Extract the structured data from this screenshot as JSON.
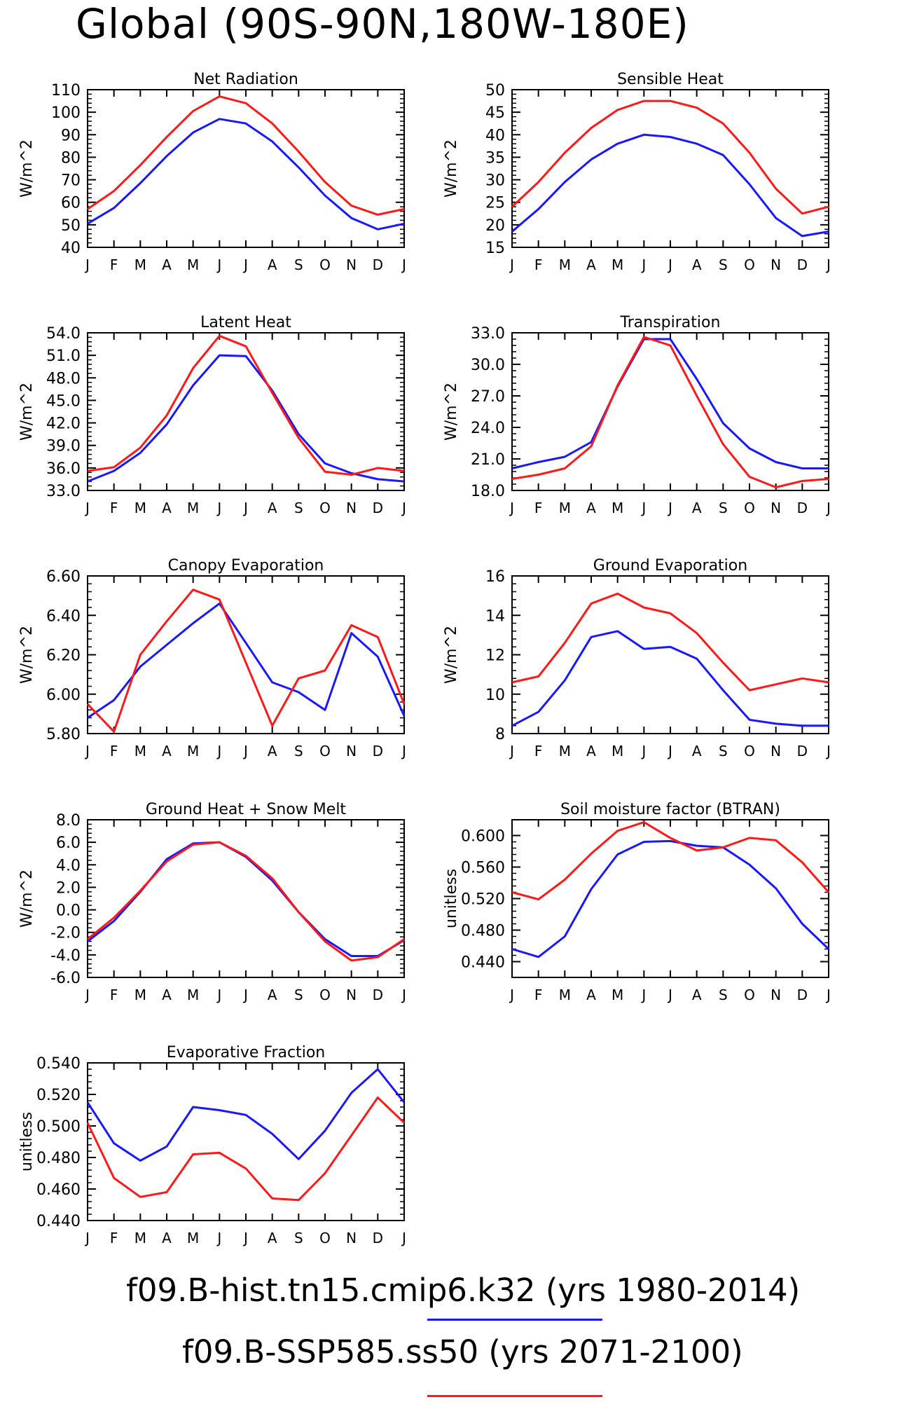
{
  "page_title": "Global (90S-90N,180W-180E)",
  "legend": [
    {
      "label": "f09.B-hist.tn15.cmip6.k32 (yrs 1980-2014)",
      "color": "#1818ff"
    },
    {
      "label": "f09.B-SSP585.ss50 (yrs 2071-2100)",
      "color": "#ff1818"
    }
  ],
  "chart_data": [
    {
      "type": "line",
      "title": "Net Radiation",
      "ylabel": "W/m^2",
      "x": [
        "J",
        "F",
        "M",
        "A",
        "M",
        "J",
        "J",
        "A",
        "S",
        "O",
        "N",
        "D",
        "J"
      ],
      "ylim": [
        40,
        110
      ],
      "yticks": [
        "40",
        "50",
        "60",
        "70",
        "80",
        "90",
        "100",
        "110"
      ],
      "series": [
        {
          "values": [
            50.5,
            57.5,
            68.5,
            80.5,
            91,
            97,
            95,
            87,
            75.5,
            63,
            53,
            48,
            50.5
          ]
        },
        {
          "values": [
            57,
            65,
            76.5,
            89,
            100.5,
            107,
            104,
            95,
            82.5,
            69,
            58.5,
            54.5,
            57
          ]
        }
      ]
    },
    {
      "type": "line",
      "title": "Sensible Heat",
      "ylabel": "W/m^2",
      "x": [
        "J",
        "F",
        "M",
        "A",
        "M",
        "J",
        "J",
        "A",
        "S",
        "O",
        "N",
        "D",
        "J"
      ],
      "ylim": [
        15,
        50
      ],
      "yticks": [
        "15",
        "20",
        "25",
        "30",
        "35",
        "40",
        "45",
        "50"
      ],
      "series": [
        {
          "values": [
            18.5,
            23.5,
            29.5,
            34.5,
            38,
            40,
            39.5,
            38,
            35.5,
            29,
            21.5,
            17.5,
            18.5
          ]
        },
        {
          "values": [
            24,
            29.5,
            36,
            41.5,
            45.5,
            47.5,
            47.5,
            46,
            42.5,
            36,
            28,
            22.5,
            24
          ]
        }
      ]
    },
    {
      "type": "line",
      "title": "Latent Heat",
      "ylabel": "W/m^2",
      "x": [
        "J",
        "F",
        "M",
        "A",
        "M",
        "J",
        "J",
        "A",
        "S",
        "O",
        "N",
        "D",
        "J"
      ],
      "ylim": [
        33,
        54
      ],
      "yticks": [
        "33.0",
        "36.0",
        "39.0",
        "42.0",
        "45.0",
        "48.0",
        "51.0",
        "54.0"
      ],
      "series": [
        {
          "values": [
            34.2,
            35.6,
            38,
            41.8,
            47,
            51,
            50.9,
            46.3,
            40.5,
            36.6,
            35.3,
            34.5,
            34.2
          ]
        },
        {
          "values": [
            35.6,
            36.1,
            38.7,
            43,
            49.3,
            53.6,
            52.2,
            46,
            40,
            35.5,
            35.1,
            36,
            35.6
          ]
        }
      ]
    },
    {
      "type": "line",
      "title": "Transpiration",
      "ylabel": "W/m^2",
      "x": [
        "J",
        "F",
        "M",
        "A",
        "M",
        "J",
        "J",
        "A",
        "S",
        "O",
        "N",
        "D",
        "J"
      ],
      "ylim": [
        18,
        33
      ],
      "yticks": [
        "18.0",
        "21.0",
        "24.0",
        "27.0",
        "30.0",
        "33.0"
      ],
      "series": [
        {
          "values": [
            20.1,
            20.7,
            21.2,
            22.6,
            27.9,
            32.4,
            32.4,
            28.6,
            24.4,
            22,
            20.7,
            20.1,
            20.1
          ]
        },
        {
          "values": [
            19.1,
            19.5,
            20.1,
            22.2,
            28,
            32.6,
            31.8,
            27,
            22.4,
            19.3,
            18.3,
            18.9,
            19.1
          ]
        }
      ]
    },
    {
      "type": "line",
      "title": "Canopy Evaporation",
      "ylabel": "W/m^2",
      "x": [
        "J",
        "F",
        "M",
        "A",
        "M",
        "J",
        "J",
        "A",
        "S",
        "O",
        "N",
        "D",
        "J"
      ],
      "ylim": [
        5.8,
        6.6
      ],
      "yticks": [
        "5.80",
        "6.00",
        "6.20",
        "6.40",
        "6.60"
      ],
      "series": [
        {
          "values": [
            5.88,
            5.97,
            6.14,
            6.25,
            6.36,
            6.46,
            6.26,
            6.06,
            6.01,
            5.92,
            6.31,
            6.19,
            5.89
          ]
        },
        {
          "values": [
            5.95,
            5.81,
            6.2,
            6.37,
            6.53,
            6.48,
            6.16,
            5.84,
            6.08,
            6.12,
            6.35,
            6.29,
            5.95
          ]
        }
      ]
    },
    {
      "type": "line",
      "title": "Ground Evaporation",
      "ylabel": "W/m^2",
      "x": [
        "J",
        "F",
        "M",
        "A",
        "M",
        "J",
        "J",
        "A",
        "S",
        "O",
        "N",
        "D",
        "J"
      ],
      "ylim": [
        8,
        16
      ],
      "yticks": [
        "8",
        "10",
        "12",
        "14",
        "16"
      ],
      "series": [
        {
          "values": [
            8.4,
            9.1,
            10.7,
            12.9,
            13.2,
            12.3,
            12.4,
            11.8,
            10.2,
            8.7,
            8.5,
            8.4,
            8.4
          ]
        },
        {
          "values": [
            10.6,
            10.9,
            12.6,
            14.6,
            15.1,
            14.4,
            14.1,
            13.1,
            11.6,
            10.2,
            10.5,
            10.8,
            10.6
          ]
        }
      ]
    },
    {
      "type": "line",
      "title": "Ground Heat + Snow Melt",
      "ylabel": "W/m^2",
      "x": [
        "J",
        "F",
        "M",
        "A",
        "M",
        "J",
        "J",
        "A",
        "S",
        "O",
        "N",
        "D",
        "J"
      ],
      "ylim": [
        -6,
        8
      ],
      "yticks": [
        "-6.0",
        "-4.0",
        "-2.0",
        "0.0",
        "2.0",
        "4.0",
        "6.0",
        "8.0"
      ],
      "series": [
        {
          "values": [
            -2.8,
            -1,
            1.6,
            4.5,
            5.9,
            6,
            4.7,
            2.6,
            -0.2,
            -2.6,
            -4.1,
            -4.1,
            -2.7
          ]
        },
        {
          "values": [
            -2.6,
            -0.7,
            1.7,
            4.3,
            5.8,
            6,
            4.8,
            2.8,
            -0.2,
            -2.8,
            -4.5,
            -4.2,
            -2.6
          ]
        }
      ]
    },
    {
      "type": "line",
      "title": "Soil moisture factor (BTRAN)",
      "ylabel": "unitless",
      "x": [
        "J",
        "F",
        "M",
        "A",
        "M",
        "J",
        "J",
        "A",
        "S",
        "O",
        "N",
        "D",
        "J"
      ],
      "ylim": [
        0.42,
        0.62
      ],
      "yticks": [
        "0.440",
        "0.480",
        "0.520",
        "0.560",
        "0.600"
      ],
      "series": [
        {
          "values": [
            0.456,
            0.446,
            0.472,
            0.532,
            0.576,
            0.592,
            0.593,
            0.587,
            0.585,
            0.563,
            0.533,
            0.488,
            0.456
          ]
        },
        {
          "values": [
            0.528,
            0.519,
            0.544,
            0.577,
            0.606,
            0.617,
            0.597,
            0.581,
            0.585,
            0.597,
            0.594,
            0.566,
            0.528
          ]
        }
      ]
    },
    {
      "type": "line",
      "title": "Evaporative Fraction",
      "ylabel": "unitless",
      "x": [
        "J",
        "F",
        "M",
        "A",
        "M",
        "J",
        "J",
        "A",
        "S",
        "O",
        "N",
        "D",
        "J"
      ],
      "ylim": [
        0.44,
        0.54
      ],
      "yticks": [
        "0.440",
        "0.460",
        "0.480",
        "0.500",
        "0.520",
        "0.540"
      ],
      "series": [
        {
          "values": [
            0.515,
            0.489,
            0.478,
            0.487,
            0.512,
            0.51,
            0.507,
            0.495,
            0.479,
            0.497,
            0.521,
            0.536,
            0.515
          ]
        },
        {
          "values": [
            0.502,
            0.467,
            0.455,
            0.458,
            0.482,
            0.483,
            0.473,
            0.454,
            0.453,
            0.47,
            0.494,
            0.518,
            0.502
          ]
        }
      ]
    }
  ]
}
